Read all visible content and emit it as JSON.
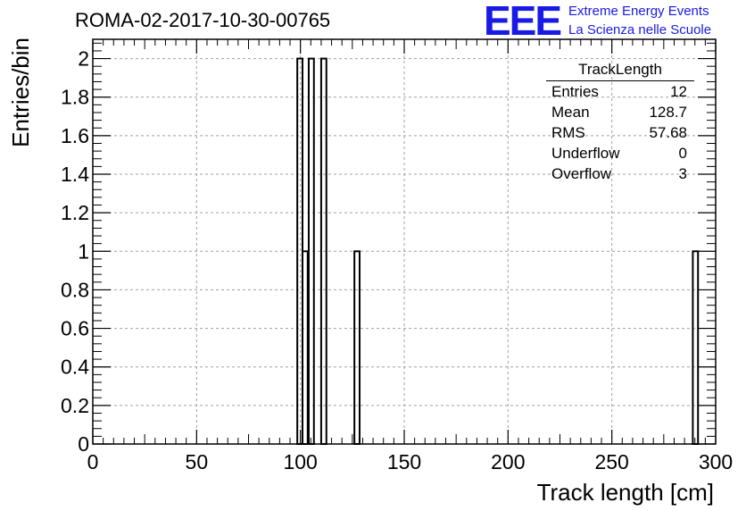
{
  "header": {
    "run_title": "ROMA-02-2017-10-30-00765",
    "logo_text": "EEE",
    "logo_line1": "Extreme Energy Events",
    "logo_line2": "La Scienza nelle Scuole"
  },
  "stats": {
    "title": "TrackLength",
    "rows": [
      {
        "label": "Entries",
        "value": "12"
      },
      {
        "label": "Mean",
        "value": "128.7"
      },
      {
        "label": "RMS",
        "value": "57.68"
      },
      {
        "label": "Underflow",
        "value": "0"
      },
      {
        "label": "Overflow",
        "value": "3"
      }
    ]
  },
  "chart_data": {
    "type": "bar",
    "title": "",
    "xlabel": "Track length [cm]",
    "ylabel": "Entries/bin",
    "xlim": [
      0,
      300
    ],
    "ylim": [
      0,
      2.1
    ],
    "grid": true,
    "bin_width": 2.5,
    "bins": [
      {
        "x": 98.5,
        "value": 2
      },
      {
        "x": 101,
        "value": 1
      },
      {
        "x": 104,
        "value": 2
      },
      {
        "x": 110,
        "value": 2
      },
      {
        "x": 126,
        "value": 1
      },
      {
        "x": 289,
        "value": 1
      }
    ],
    "x_ticks": [
      "0",
      "50",
      "100",
      "150",
      "200",
      "250",
      "300"
    ],
    "y_ticks": [
      "0",
      "0.2",
      "0.4",
      "0.6",
      "0.8",
      "1",
      "1.2",
      "1.4",
      "1.6",
      "1.8",
      "2"
    ]
  }
}
